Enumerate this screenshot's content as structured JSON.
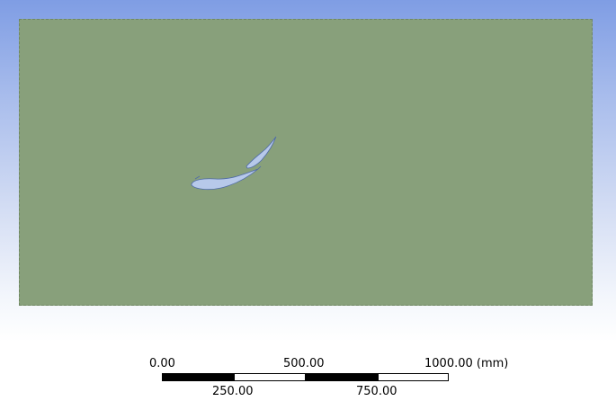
{
  "colors": {
    "background_top": "#7f9de4",
    "background_bottom": "#ffffff",
    "fluid_domain": "#88a07b",
    "airfoil": "#b7c9ea"
  },
  "scale_bar": {
    "top_labels": [
      "0.00",
      "500.00",
      "1000.00 (mm)"
    ],
    "bottom_labels": [
      "250.00",
      "750.00"
    ]
  }
}
